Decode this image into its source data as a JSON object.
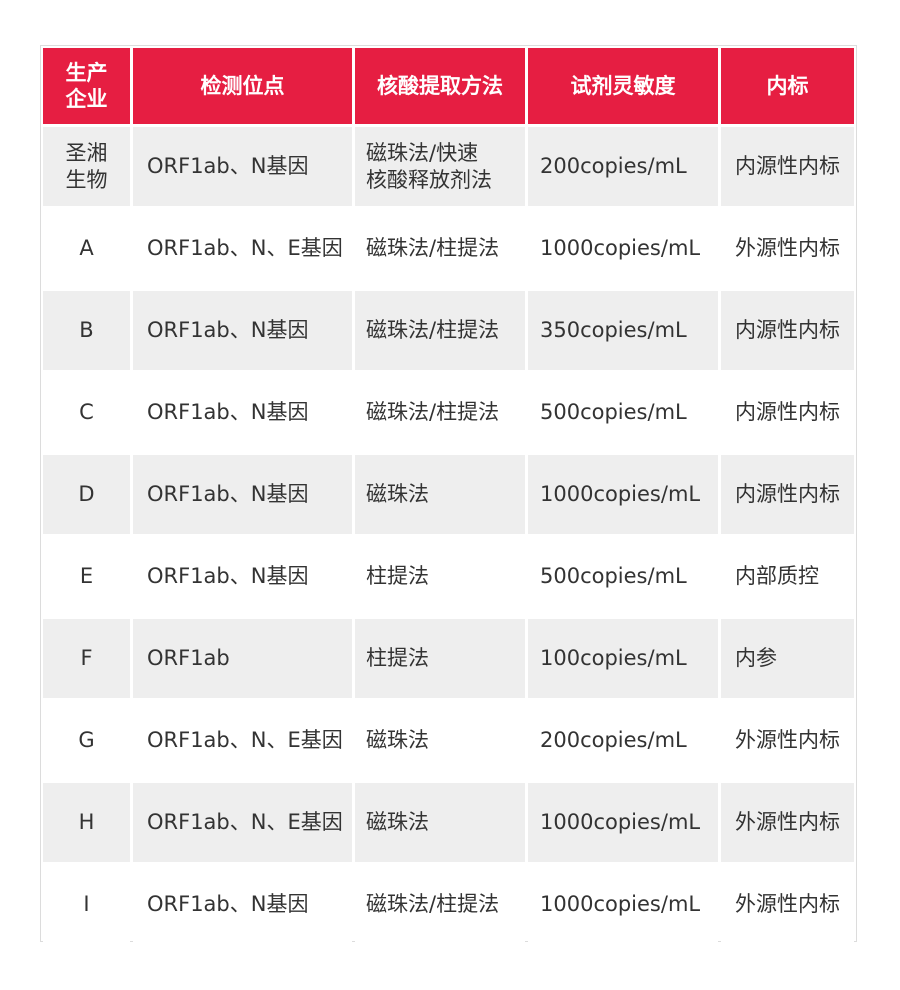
{
  "table": {
    "headers": [
      "生产\n企业",
      "检测位点",
      "核酸提取方法",
      "试剂灵敏度",
      "内标"
    ],
    "header_color": "#e61e42",
    "rows": [
      [
        "圣湘\n生物",
        "ORF1ab、N基因",
        "磁珠法/快速\n核酸释放剂法",
        "200copies/mL",
        "内源性内标"
      ],
      [
        "A",
        "ORF1ab、N、E基因",
        "磁珠法/柱提法",
        "1000copies/mL",
        "外源性内标"
      ],
      [
        "B",
        "ORF1ab、N基因",
        "磁珠法/柱提法",
        "350copies/mL",
        "内源性内标"
      ],
      [
        "C",
        "ORF1ab、N基因",
        "磁珠法/柱提法",
        "500copies/mL",
        "内源性内标"
      ],
      [
        "D",
        "ORF1ab、N基因",
        "磁珠法",
        "1000copies/mL",
        "内源性内标"
      ],
      [
        "E",
        "ORF1ab、N基因",
        "柱提法",
        "500copies/mL",
        "内部质控"
      ],
      [
        "F",
        "ORF1ab",
        "柱提法",
        "100copies/mL",
        "内参"
      ],
      [
        "G",
        "ORF1ab、N、E基因",
        "磁珠法",
        "200copies/mL",
        "外源性内标"
      ],
      [
        "H",
        "ORF1ab、N、E基因",
        "磁珠法",
        "1000copies/mL",
        "外源性内标"
      ],
      [
        "I",
        "ORF1ab、N基因",
        "磁珠法/柱提法",
        "1000copies/mL",
        "外源性内标"
      ]
    ]
  }
}
